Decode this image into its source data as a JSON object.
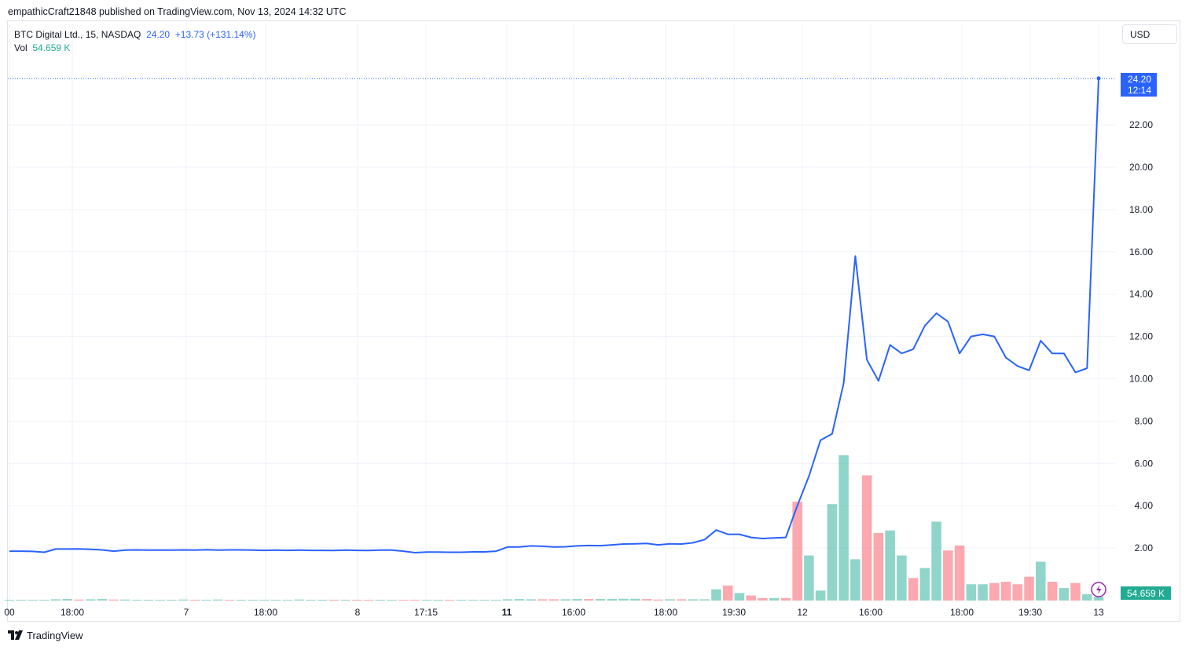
{
  "header": {
    "published_line": "empathicCraft21848 published on TradingView.com, Nov 13, 2024 14:32 UTC"
  },
  "legend": {
    "symbol": "BTC Digital Ltd., 15, NASDAQ",
    "last": "24.20",
    "change": "+13.73 (+131.14%)",
    "vol_label": "Vol",
    "vol_value": "54.659 K"
  },
  "currency_button": "USD",
  "price_badge": {
    "price": "24.20",
    "countdown": "12:14"
  },
  "volume_badge": "54.659 K",
  "footer": {
    "brand": "TradingView"
  },
  "colors": {
    "line": "#2962ff",
    "vol_up": "#22ab94",
    "vol_down": "#f7525f",
    "axis_text": "#131722",
    "grid": "#f0f3fa"
  },
  "chart_data": {
    "type": "line",
    "title": "BTC Digital Ltd., 15, NASDAQ",
    "ylim": [
      0,
      25
    ],
    "y_ticks": [
      "2.00",
      "4.00",
      "6.00",
      "8.00",
      "10.00",
      "12.00",
      "14.00",
      "16.00",
      "18.00",
      "20.00",
      "22.00"
    ],
    "x_ticks": [
      "00",
      "18:00",
      "7",
      "18:00",
      "8",
      "17:15",
      "11",
      "16:00",
      "18:00",
      "19:30",
      "12",
      "16:00",
      "18:00",
      "19:30",
      "13"
    ],
    "series": [
      {
        "values": [
          1.85,
          1.85,
          1.84,
          1.8,
          1.95,
          1.95,
          1.96,
          1.94,
          1.91,
          1.85,
          1.9,
          1.91,
          1.9,
          1.9,
          1.9,
          1.91,
          1.9,
          1.92,
          1.9,
          1.91,
          1.91,
          1.9,
          1.89,
          1.9,
          1.89,
          1.9,
          1.89,
          1.89,
          1.88,
          1.9,
          1.89,
          1.88,
          1.9,
          1.9,
          1.85,
          1.78,
          1.81,
          1.81,
          1.8,
          1.8,
          1.82,
          1.82,
          1.85,
          2.05,
          2.05,
          2.1,
          2.08,
          2.05,
          2.06,
          2.1,
          2.12,
          2.11,
          2.15,
          2.19,
          2.2,
          2.22,
          2.15,
          2.2,
          2.19,
          2.25,
          2.4,
          2.85,
          2.65,
          2.65,
          2.5,
          2.45,
          2.48,
          2.5,
          4.0,
          5.4,
          7.1,
          7.4,
          9.8,
          15.8,
          10.9,
          9.9,
          11.6,
          11.2,
          11.4,
          12.5,
          13.1,
          12.7,
          11.2,
          12.0,
          12.1,
          12.0,
          11.0,
          10.6,
          10.4,
          11.8,
          11.2,
          11.2,
          10.3,
          10.5,
          24.2
        ]
      }
    ],
    "volume": {
      "values": [
        0.02,
        0.02,
        0.03,
        0.03,
        0.05,
        0.06,
        0.04,
        0.05,
        0.06,
        0.04,
        0.04,
        0.03,
        0.03,
        0.03,
        0.03,
        0.04,
        0.03,
        0.03,
        0.04,
        0.03,
        0.03,
        0.03,
        0.03,
        0.03,
        0.03,
        0.04,
        0.03,
        0.03,
        0.03,
        0.03,
        0.03,
        0.03,
        0.03,
        0.03,
        0.03,
        0.03,
        0.03,
        0.03,
        0.03,
        0.03,
        0.03,
        0.03,
        0.03,
        0.05,
        0.06,
        0.05,
        0.05,
        0.05,
        0.05,
        0.06,
        0.06,
        0.06,
        0.06,
        0.07,
        0.07,
        0.06,
        0.04,
        0.05,
        0.05,
        0.05,
        0.05,
        0.45,
        0.6,
        0.3,
        0.2,
        0.1,
        0.1,
        0.1,
        3.95,
        1.8,
        0.4,
        3.85,
        5.8,
        1.65,
        5.0,
        2.7,
        2.8,
        1.8,
        0.9,
        1.3,
        3.15,
        2.0,
        2.2,
        0.65,
        0.65,
        0.7,
        0.75,
        0.65,
        0.95,
        1.55,
        0.75,
        0.5,
        0.7,
        0.25,
        0.15
      ],
      "up": [
        true,
        true,
        true,
        true,
        true,
        true,
        false,
        true,
        true,
        false,
        true,
        true,
        true,
        true,
        true,
        true,
        false,
        true,
        true,
        false,
        true,
        true,
        true,
        true,
        true,
        true,
        true,
        true,
        false,
        true,
        false,
        false,
        true,
        true,
        false,
        false,
        true,
        true,
        false,
        true,
        true,
        true,
        true,
        true,
        true,
        true,
        false,
        false,
        true,
        true,
        false,
        true,
        true,
        true,
        true,
        false,
        false,
        true,
        false,
        true,
        true,
        true,
        false,
        true,
        false,
        false,
        true,
        false,
        false,
        true,
        true,
        true,
        true,
        true,
        false,
        false,
        true,
        true,
        false,
        true,
        true,
        false,
        false,
        true,
        true,
        false,
        false,
        false,
        false,
        true,
        false,
        true,
        false,
        true,
        true
      ],
      "ylim": [
        0,
        6.5
      ]
    }
  }
}
